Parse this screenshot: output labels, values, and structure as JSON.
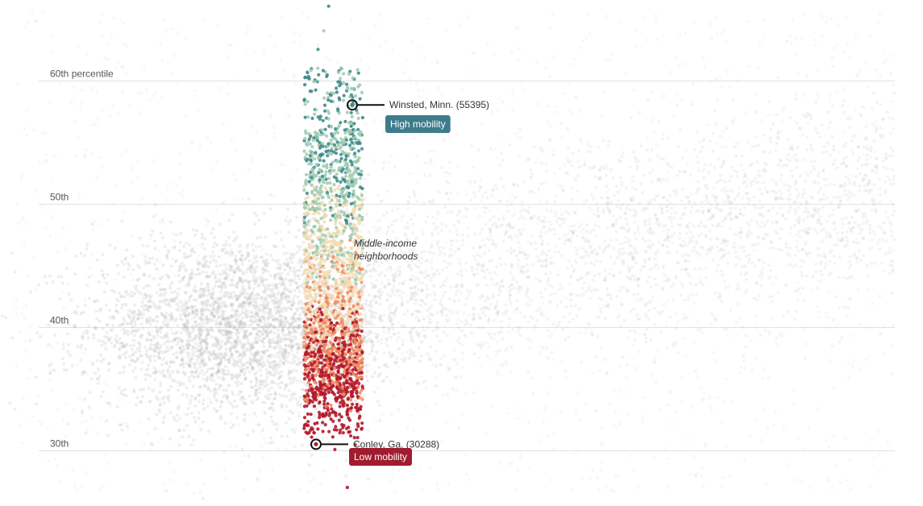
{
  "chart_data": {
    "type": "scatter",
    "title": "",
    "xlabel": "",
    "ylabel": "",
    "ylim": [
      25.5,
      66.5
    ],
    "grid": true,
    "y_ticks": [
      {
        "value": 60,
        "label": "60th percentile"
      },
      {
        "value": 50,
        "label": "50th"
      },
      {
        "value": 40,
        "label": "40th"
      },
      {
        "value": 30,
        "label": "30th"
      }
    ],
    "group_note": [
      "Middle-income",
      "neighborhoods"
    ],
    "color_scale": {
      "low": "#b2182b",
      "mid_low": "#ef8a62",
      "mid": "#f3dcb4",
      "mid_high": "#9fcdb3",
      "high": "#3f8a8c"
    },
    "background_color": "#b8b8b8",
    "annotations": [
      {
        "label": "Winsted, Minn. (55395)",
        "badge": "High mobility",
        "badge_color": "#3d7c8c",
        "y": 58
      },
      {
        "label": "Conley, Ga. (30288)",
        "badge": "Low mobility",
        "badge_color": "#a01c2e",
        "y": 30.5
      }
    ]
  }
}
